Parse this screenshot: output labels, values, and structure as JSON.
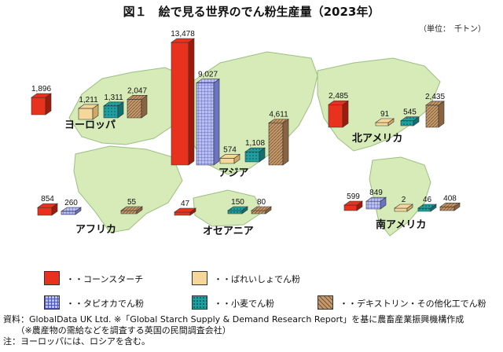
{
  "title": "図１　絵で見る世界のでん粉生産量（2023年）",
  "unit": "（単位：　千トン）",
  "categories": {
    "corn": "・・コーンスターチ",
    "potato": "・・ばれいしょでん粉",
    "tapioca": "・・タピオカでん粉",
    "wheat": "・・小麦でん粉",
    "dextrin": "・・デキストリン・その他化工でん粉"
  },
  "colors": {
    "corn": "#e8321e",
    "potato": "#f6d79a",
    "tapioca": "#9ea8e6",
    "wheat": "#22a6a6",
    "dextrin": "#b88d5e",
    "land": "#d6ebb8",
    "land_edge": "#9bbf82"
  },
  "regions": [
    {
      "key": "europe",
      "name": "ヨーロッパ"
    },
    {
      "key": "asia",
      "name": "アジア"
    },
    {
      "key": "north_america",
      "name": "北アメリカ"
    },
    {
      "key": "africa",
      "name": "アフリカ"
    },
    {
      "key": "oceania",
      "name": "オセアニア"
    },
    {
      "key": "south_america",
      "name": "南アメリカ"
    }
  ],
  "chart_data": {
    "type": "bar",
    "title": "図１　絵で見る世界のでん粉生産量（2023年）",
    "unit": "千トン",
    "series": [
      {
        "key": "corn",
        "name": "コーンスターチ"
      },
      {
        "key": "potato",
        "name": "ばれいしょでん粉"
      },
      {
        "key": "tapioca",
        "name": "タピオカでん粉"
      },
      {
        "key": "wheat",
        "name": "小麦でん粉"
      },
      {
        "key": "dextrin",
        "name": "デキストリン・その他化工でん粉"
      }
    ],
    "values": {
      "europe": {
        "corn": 1896,
        "potato": 1211,
        "wheat": 1311,
        "dextrin": 2047
      },
      "asia": {
        "corn": 13478,
        "tapioca": 9027,
        "potato": 574,
        "wheat": 1108,
        "dextrin": 4611
      },
      "north_america": {
        "corn": 2485,
        "potato": 91,
        "wheat": 545,
        "dextrin": 2435
      },
      "africa": {
        "corn": 854,
        "tapioca": 260,
        "dextrin": 55
      },
      "oceania": {
        "corn": 47,
        "wheat": 150,
        "dextrin": 80
      },
      "south_america": {
        "corn": 599,
        "tapioca": 849,
        "potato": 2,
        "wheat": 46,
        "dextrin": 408
      }
    },
    "value_labels": {
      "europe": {
        "corn": "1,896",
        "potato": "1,211",
        "wheat": "1,311",
        "dextrin": "2,047"
      },
      "asia": {
        "corn": "13,478",
        "tapioca": "9,027",
        "potato": "574",
        "wheat": "1,108",
        "dextrin": "4,611"
      },
      "north_america": {
        "corn": "2,485",
        "potato": "91",
        "wheat": "545",
        "dextrin": "2,435"
      },
      "africa": {
        "corn": "854",
        "tapioca": "260",
        "dextrin": "55"
      },
      "oceania": {
        "corn": "47",
        "wheat": "150",
        "dextrin": "80"
      },
      "south_america": {
        "corn": "599",
        "tapioca": "849",
        "potato": "2",
        "wheat": "46",
        "dextrin": "408"
      }
    }
  },
  "notes": [
    "資料：GlobalData UK Ltd. ※「Global Starch Supply & Demand Research Report」を基に農畜産業振興機構作成",
    "　　（※農産物の需給などを調査する英国の民間調査会社）",
    "注：ヨーロッパには、ロシアを含む。"
  ]
}
